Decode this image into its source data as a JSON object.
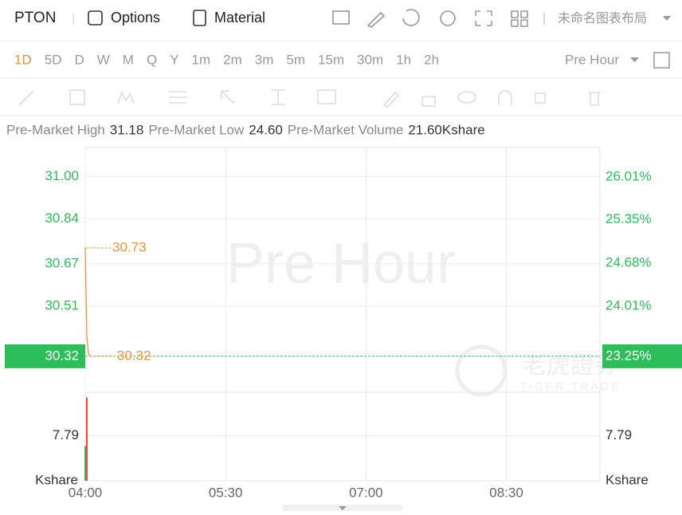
{
  "toolbar": {
    "symbol": "PTON",
    "options": "Options",
    "material": "Material",
    "layout": "未命名图表布局"
  },
  "periods": [
    "1D",
    "5D",
    "D",
    "W",
    "M",
    "Q",
    "Y",
    "1m",
    "2m",
    "3m",
    "5m",
    "15m",
    "30m",
    "1h",
    "2h"
  ],
  "session": "Pre Hour",
  "info": [
    {
      "label": "Pre-Market High",
      "value": "31.18"
    },
    {
      "label": "Pre-Market Low",
      "value": "24.60"
    },
    {
      "label": "Pre-Market Volume",
      "value": "21.60Kshare"
    }
  ],
  "watermark": "Pre Hour",
  "brand": "老虎證券",
  "brand_en": "TIGER TRADE",
  "chart_data": {
    "type": "line",
    "grid": true,
    "xlim": [
      240,
      570
    ],
    "xticks": [
      {
        "value": 240,
        "label": "04:00"
      },
      {
        "value": 330,
        "label": "05:30"
      },
      {
        "value": 420,
        "label": "07:00"
      },
      {
        "value": 510,
        "label": "08:30"
      }
    ],
    "ylim": [
      30.19,
      31.11
    ],
    "yticks": [
      {
        "value": 31,
        "label": "31.00"
      },
      30.84,
      30.67,
      30.51
    ],
    "y2lim": [
      22.7,
      26.47
    ],
    "y2ticks": [
      {
        "value": 26.01,
        "label": "26.01%"
      },
      {
        "value": 25.35,
        "label": "25.35%"
      },
      {
        "value": 24.68,
        "label": "24.68%"
      },
      {
        "value": 24.01,
        "label": "24.01%"
      }
    ],
    "x": [
      240,
      241,
      242,
      243
    ],
    "values": [
      30.73,
      30.4,
      30.33,
      30.32
    ],
    "color": "#f0913a",
    "annotations": [
      {
        "x": 240,
        "value": 30.73
      },
      {
        "x": 243,
        "value": 30.32
      }
    ],
    "last": {
      "value": 30.32,
      "pct": 23.25,
      "pct_label": "23.25%",
      "color": "#2dbd5a"
    },
    "volume": {
      "ylim": [
        0,
        15.3
      ],
      "yticks": [
        7.79
      ],
      "unit": "Kshare",
      "x": [
        240,
        241
      ],
      "values": [
        6.0,
        14.4
      ],
      "colors": [
        "#2dbd5a",
        "#e8463c"
      ]
    }
  }
}
